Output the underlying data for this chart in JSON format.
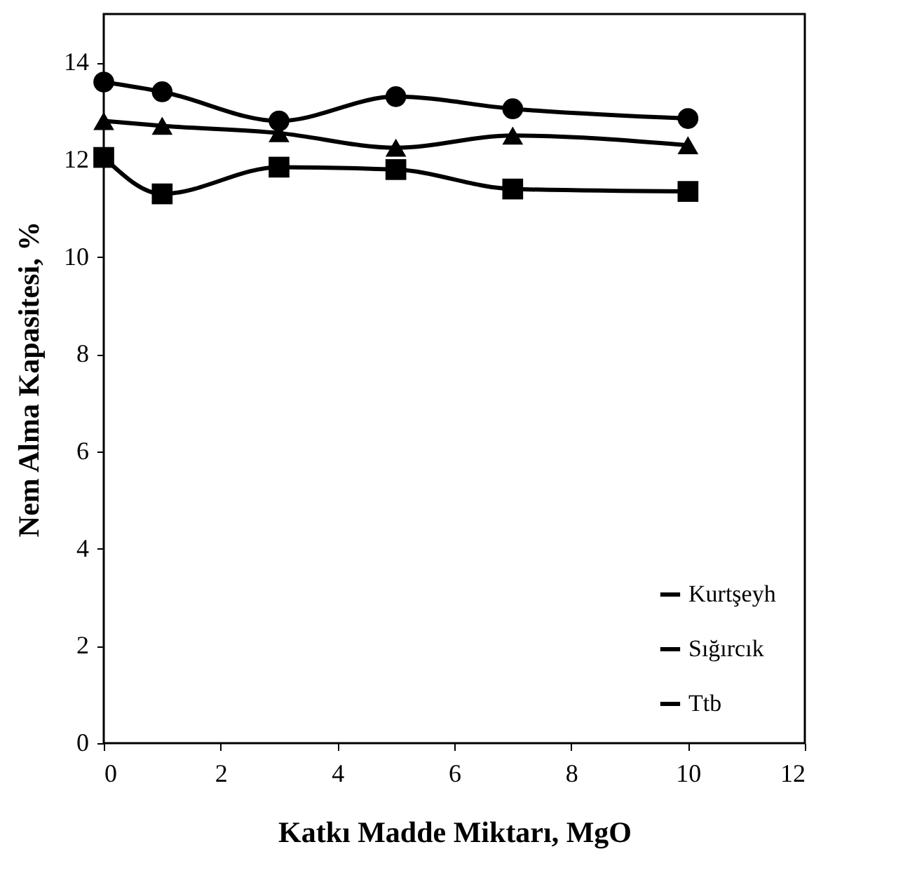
{
  "chart_data": {
    "type": "line",
    "xlabel": "Katkı Madde Miktarı, MgO",
    "ylabel": "Nem Alma Kapasitesi, %",
    "x": [
      0,
      1,
      3,
      5,
      7,
      10
    ],
    "series": [
      {
        "name": "Kurtşeyh",
        "color": "#000000",
        "marker": "circle",
        "values": [
          13.6,
          13.4,
          12.8,
          13.3,
          13.05,
          12.85
        ]
      },
      {
        "name": "Sığırcık",
        "color": "#000000",
        "marker": "square",
        "values": [
          12.05,
          11.3,
          11.85,
          11.8,
          11.4,
          11.35
        ]
      },
      {
        "name": "Ttb",
        "color": "#000000",
        "marker": "triangle",
        "values": [
          12.8,
          12.7,
          12.55,
          12.25,
          12.5,
          12.3
        ]
      }
    ],
    "xlim": [
      0,
      12
    ],
    "xticks": [
      0,
      2,
      4,
      6,
      8,
      10,
      12
    ],
    "ylim": [
      0,
      15
    ],
    "yticks": [
      0,
      2,
      4,
      6,
      8,
      10,
      12,
      14
    ],
    "grid": false,
    "legend": "bottom right",
    "line_style": "solid"
  }
}
